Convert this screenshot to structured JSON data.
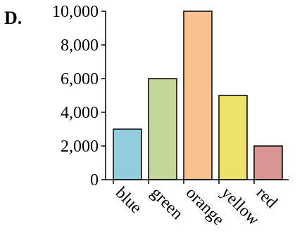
{
  "panel_label": "D.",
  "chart_data": {
    "type": "bar",
    "title": "",
    "xlabel": "",
    "ylabel": "",
    "categories": [
      "blue",
      "green",
      "orange",
      "yellow",
      "red"
    ],
    "values": [
      3000,
      6000,
      10000,
      5000,
      2000
    ],
    "bar_colors": [
      "#92cddc",
      "#c4d79b",
      "#fac090",
      "#ece26a",
      "#d99694"
    ],
    "ylim": [
      0,
      10000
    ],
    "yticks": [
      0,
      2000,
      4000,
      6000,
      8000,
      10000
    ],
    "ytick_labels": [
      "0",
      "2,000",
      "4,000",
      "6,000",
      "8,000",
      "10,000"
    ],
    "grid": false,
    "legend": "none"
  }
}
